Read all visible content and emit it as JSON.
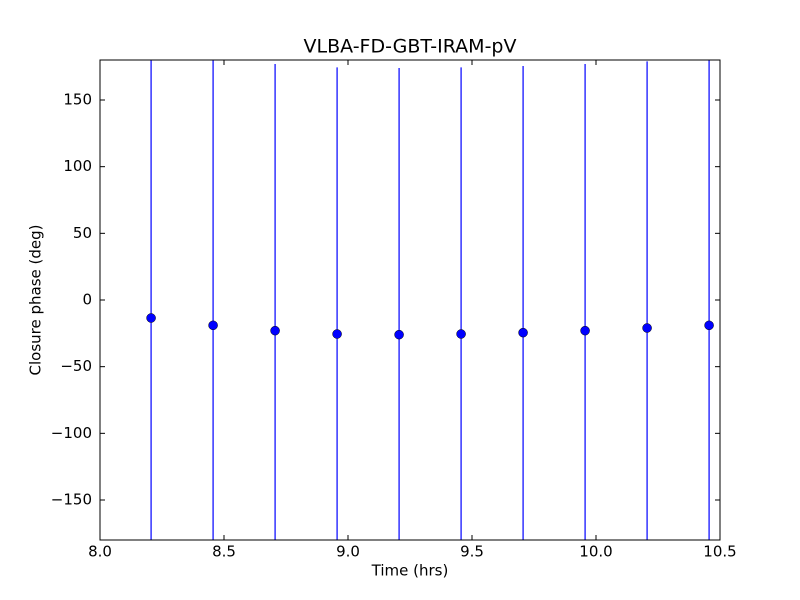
{
  "chart_data": {
    "type": "errorbar",
    "title": "VLBA-FD-GBT-IRAM-pV",
    "xlabel": "Time (hrs)",
    "ylabel": "Closure phase (deg)",
    "x": [
      8.206,
      8.456,
      8.706,
      8.956,
      9.206,
      9.456,
      9.706,
      9.956,
      10.206,
      10.456
    ],
    "series": [
      {
        "color": "#0000ff",
        "values": [
          -13.5,
          -19,
          -23,
          -25.5,
          -26,
          -25.5,
          -24.5,
          -23,
          -21,
          -19
        ],
        "errors": [
          200,
          200,
          200,
          200,
          200,
          200,
          200,
          200,
          200,
          200
        ]
      }
    ],
    "xlim": [
      8.0,
      10.5
    ],
    "ylim": [
      -180,
      180
    ],
    "xticks": [
      {
        "value": 8.0,
        "label": "8.0"
      },
      8.5,
      {
        "value": 9.0,
        "label": "9.0"
      },
      9.5,
      {
        "value": 10.0,
        "label": "10.0"
      },
      10.5
    ],
    "yticks": [
      {
        "value": -150,
        "label": "−150"
      },
      {
        "value": -100,
        "label": "−100"
      },
      {
        "value": -50,
        "label": "−50"
      },
      0,
      50,
      100,
      150
    ],
    "grid": false
  }
}
